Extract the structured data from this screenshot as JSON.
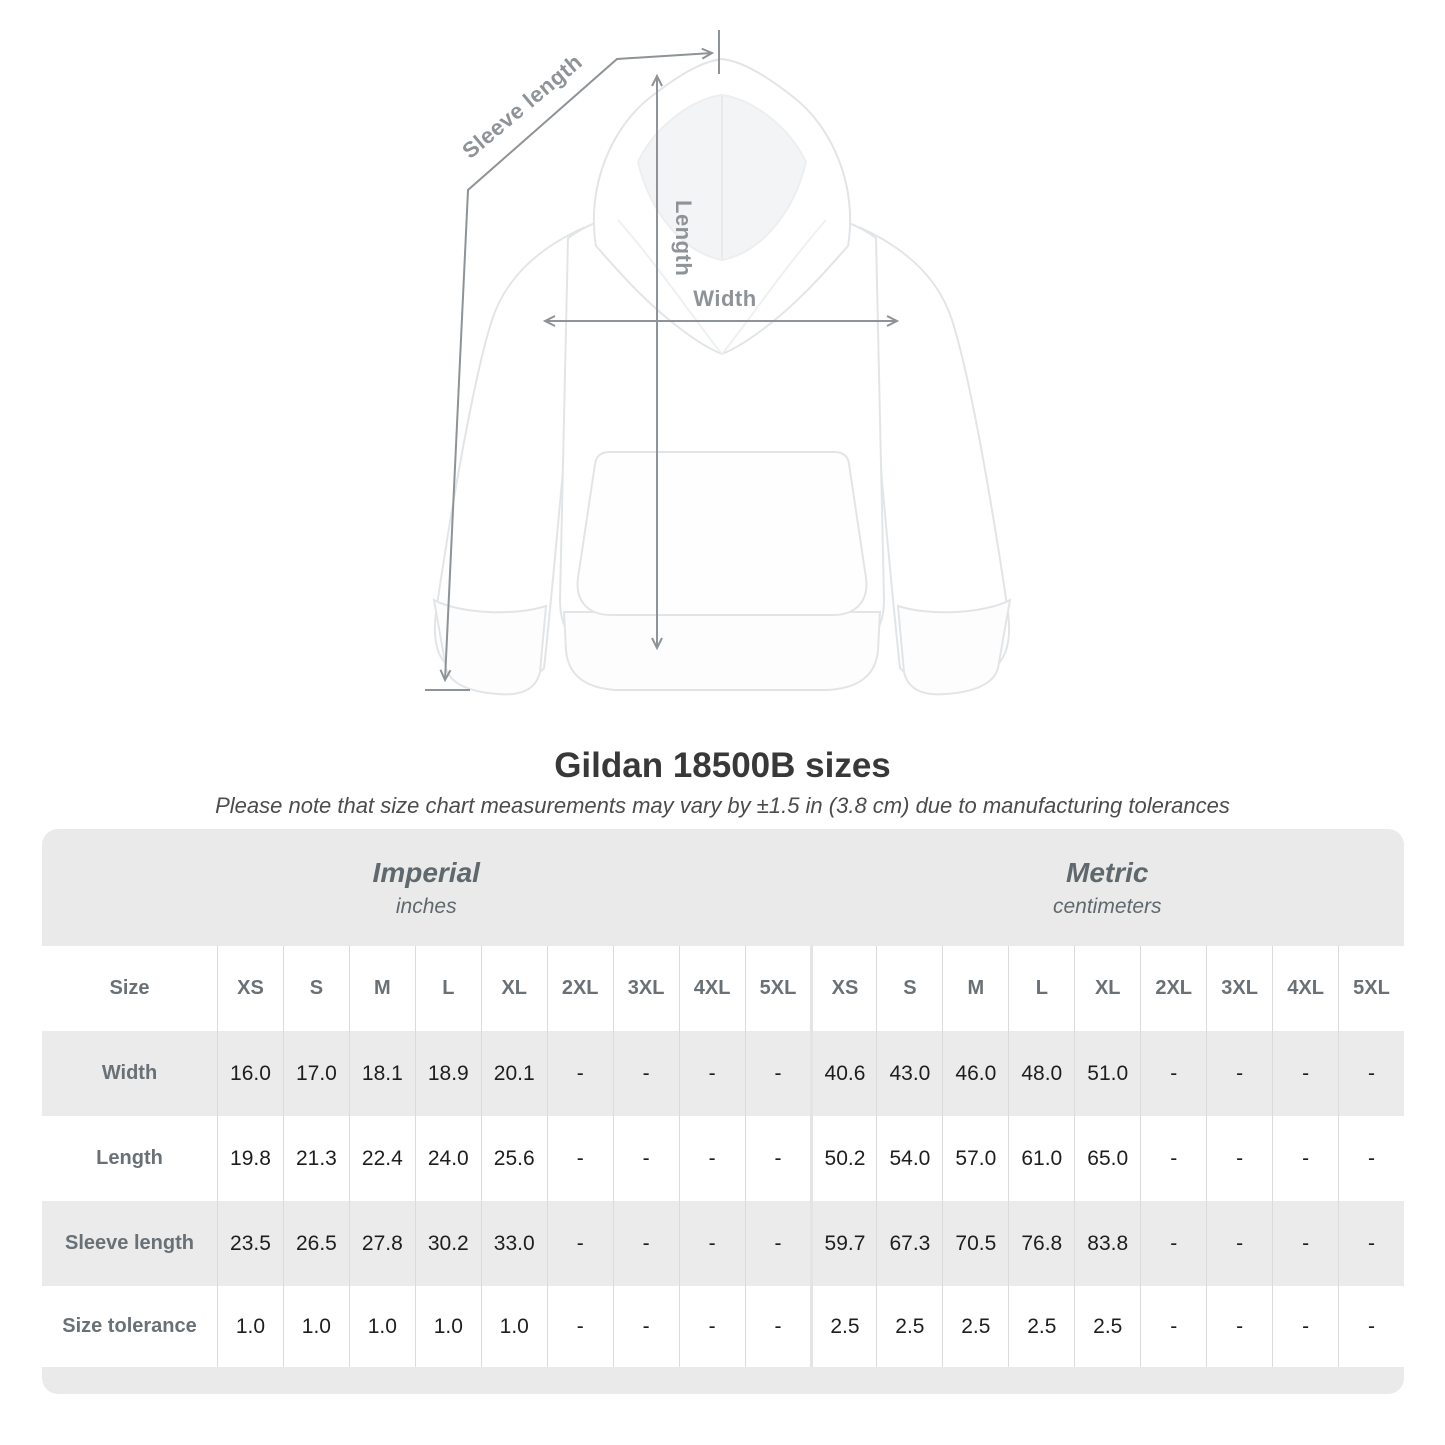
{
  "diagram": {
    "sleeve_length_label": "Sleeve length",
    "length_label": "Length",
    "width_label": "Width",
    "arrow_color": "#8e9397"
  },
  "heading": {
    "title": "Gildan 18500B sizes",
    "subtitle": "Please note that size chart measurements may vary by ±1.5 in (3.8 cm) due to manufacturing tolerances"
  },
  "table": {
    "unit_groups": [
      {
        "label": "Imperial",
        "sublabel": "inches"
      },
      {
        "label": "Metric",
        "sublabel": "centimeters"
      }
    ],
    "size_label": "Size",
    "sizes": [
      "XS",
      "S",
      "M",
      "L",
      "XL",
      "2XL",
      "3XL",
      "4XL",
      "5XL"
    ],
    "rows": [
      {
        "label": "Width",
        "imperial": [
          "16.0",
          "17.0",
          "18.1",
          "18.9",
          "20.1",
          "-",
          "-",
          "-",
          "-"
        ],
        "metric": [
          "40.6",
          "43.0",
          "46.0",
          "48.0",
          "51.0",
          "-",
          "-",
          "-",
          "-"
        ]
      },
      {
        "label": "Length",
        "imperial": [
          "19.8",
          "21.3",
          "22.4",
          "24.0",
          "25.6",
          "-",
          "-",
          "-",
          "-"
        ],
        "metric": [
          "50.2",
          "54.0",
          "57.0",
          "61.0",
          "65.0",
          "-",
          "-",
          "-",
          "-"
        ]
      },
      {
        "label": "Sleeve length",
        "imperial": [
          "23.5",
          "26.5",
          "27.8",
          "30.2",
          "33.0",
          "-",
          "-",
          "-",
          "-"
        ],
        "metric": [
          "59.7",
          "67.3",
          "70.5",
          "76.8",
          "83.8",
          "-",
          "-",
          "-",
          "-"
        ]
      },
      {
        "label": "Size tolerance",
        "imperial": [
          "1.0",
          "1.0",
          "1.0",
          "1.0",
          "1.0",
          "-",
          "-",
          "-",
          "-"
        ],
        "metric": [
          "2.5",
          "2.5",
          "2.5",
          "2.5",
          "2.5",
          "-",
          "-",
          "-",
          "-"
        ]
      }
    ],
    "colors": {
      "header_band": "#eaeaea",
      "row_alt": "#ebebeb",
      "separator": "#d9dcde",
      "label_text": "#697076",
      "value_text": "#1e1e1e"
    }
  },
  "chart_data": {
    "type": "table",
    "title": "Gildan 18500B sizes",
    "columns": [
      "XS",
      "S",
      "M",
      "L",
      "XL",
      "2XL",
      "3XL",
      "4XL",
      "5XL"
    ],
    "imperial_unit": "inches",
    "metric_unit": "centimeters",
    "rows": [
      {
        "label": "Width",
        "imperial": [
          16.0,
          17.0,
          18.1,
          18.9,
          20.1,
          null,
          null,
          null,
          null
        ],
        "metric": [
          40.6,
          43.0,
          46.0,
          48.0,
          51.0,
          null,
          null,
          null,
          null
        ]
      },
      {
        "label": "Length",
        "imperial": [
          19.8,
          21.3,
          22.4,
          24.0,
          25.6,
          null,
          null,
          null,
          null
        ],
        "metric": [
          50.2,
          54.0,
          57.0,
          61.0,
          65.0,
          null,
          null,
          null,
          null
        ]
      },
      {
        "label": "Sleeve length",
        "imperial": [
          23.5,
          26.5,
          27.8,
          30.2,
          33.0,
          null,
          null,
          null,
          null
        ],
        "metric": [
          59.7,
          67.3,
          70.5,
          76.8,
          83.8,
          null,
          null,
          null,
          null
        ]
      },
      {
        "label": "Size tolerance",
        "imperial": [
          1.0,
          1.0,
          1.0,
          1.0,
          1.0,
          null,
          null,
          null,
          null
        ],
        "metric": [
          2.5,
          2.5,
          2.5,
          2.5,
          2.5,
          null,
          null,
          null,
          null
        ]
      }
    ]
  }
}
